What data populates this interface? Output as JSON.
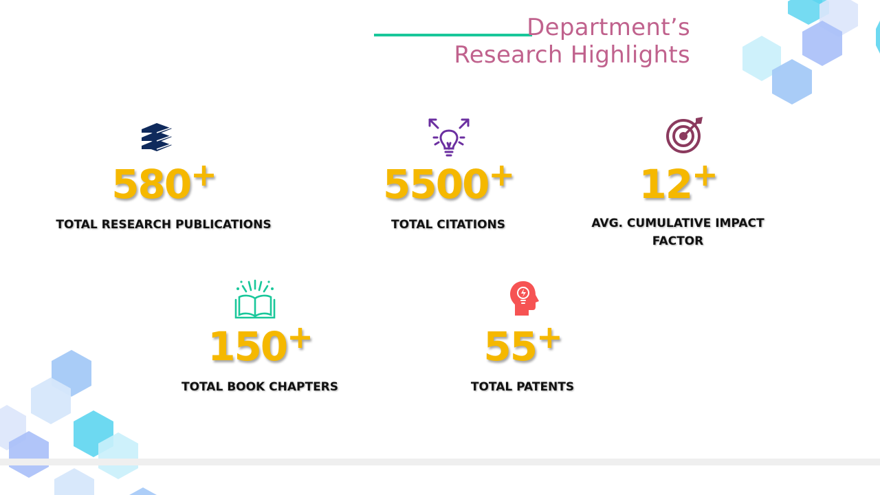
{
  "title": {
    "line1": "Department’s",
    "line2": "Research Highlights"
  },
  "colors": {
    "accent_line": "#19c79a",
    "title": "#c0628d",
    "numbers": "#f5b800"
  },
  "stats": [
    {
      "value": "580",
      "suffix": "+",
      "label": "Total Research Publications",
      "icon": "books-icon"
    },
    {
      "value": "5500",
      "suffix": "+",
      "label": "Total Citations",
      "icon": "lightbulb-icon"
    },
    {
      "value": "12",
      "suffix": "+",
      "label": "Avg. Cumulative Impact Factor",
      "icon": "target-icon"
    },
    {
      "value": "150",
      "suffix": "+",
      "label": "Total Book Chapters",
      "icon": "open-book-icon"
    },
    {
      "value": "55",
      "suffix": "+",
      "label": "Total Patents",
      "icon": "head-idea-icon"
    }
  ]
}
